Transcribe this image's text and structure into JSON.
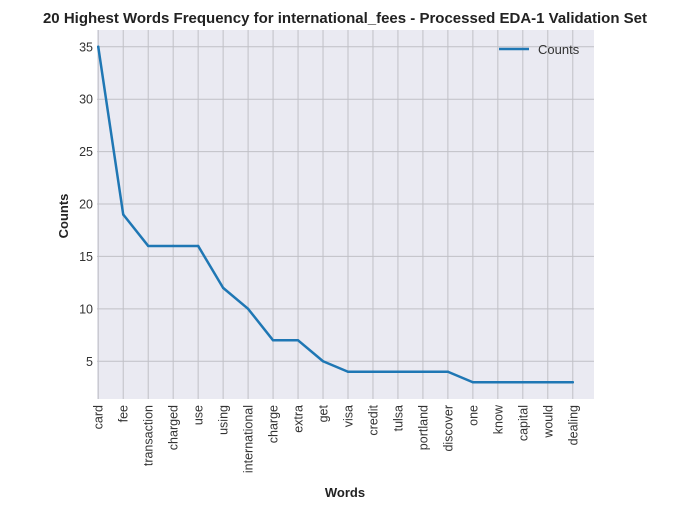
{
  "chart_data": {
    "type": "line",
    "title": "20 Highest Words Frequency for international_fees - Processed EDA-1 Validation Set",
    "xlabel": "Words",
    "ylabel": "Counts",
    "categories": [
      "card",
      "fee",
      "transaction",
      "charged",
      "use",
      "using",
      "international",
      "charge",
      "extra",
      "get",
      "visa",
      "credit",
      "tulsa",
      "portland",
      "discover",
      "one",
      "know",
      "capital",
      "would",
      "dealing"
    ],
    "series": [
      {
        "name": "Counts",
        "values": [
          35,
          19,
          16,
          16,
          16,
          12,
          10,
          7,
          7,
          5,
          4,
          4,
          4,
          4,
          4,
          3,
          3,
          3,
          3,
          3
        ],
        "color": "#1f77b4"
      }
    ],
    "ylim": [
      1.4,
      36.6
    ],
    "yticks": [
      5,
      10,
      15,
      20,
      25,
      30,
      35
    ],
    "grid": true,
    "legend": "top-right",
    "plot_background": "#eaeaf2",
    "grid_color": "#c0c0c6"
  }
}
